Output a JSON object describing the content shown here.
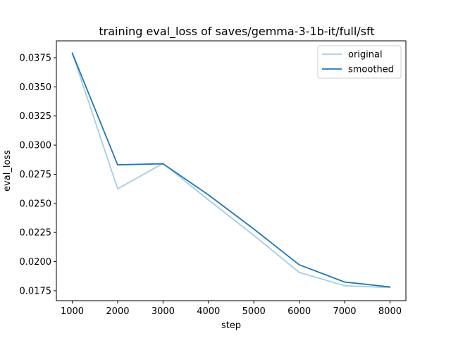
{
  "chart_data": {
    "type": "line",
    "title": "training eval_loss of saves/gemma-3-1b-it/full/sft",
    "xlabel": "step",
    "ylabel": "eval_loss",
    "xlim": [
      650,
      8350
    ],
    "ylim": [
      0.01665,
      0.03895
    ],
    "xticks": [
      1000,
      2000,
      3000,
      4000,
      5000,
      6000,
      7000,
      8000
    ],
    "xtick_labels": [
      "1000",
      "2000",
      "3000",
      "4000",
      "5000",
      "6000",
      "7000",
      "8000"
    ],
    "yticks": [
      0.0175,
      0.02,
      0.0225,
      0.025,
      0.0275,
      0.03,
      0.0325,
      0.035,
      0.0375
    ],
    "ytick_labels": [
      "0.0175",
      "0.0200",
      "0.0225",
      "0.0250",
      "0.0275",
      "0.0300",
      "0.0325",
      "0.0350",
      "0.0375"
    ],
    "grid": false,
    "legend_position": "top-right",
    "x": [
      1000,
      2000,
      3000,
      4000,
      5000,
      6000,
      7000,
      8000
    ],
    "series": [
      {
        "name": "original",
        "color": "#a6cce4",
        "values": [
          0.0379,
          0.02625,
          0.02843,
          0.0253,
          0.02225,
          0.01908,
          0.01793,
          0.01778
        ]
      },
      {
        "name": "smoothed",
        "color": "#1f77b4",
        "values": [
          0.0379,
          0.02831,
          0.0284,
          0.02573,
          0.0228,
          0.01973,
          0.01825,
          0.01783
        ]
      }
    ]
  }
}
